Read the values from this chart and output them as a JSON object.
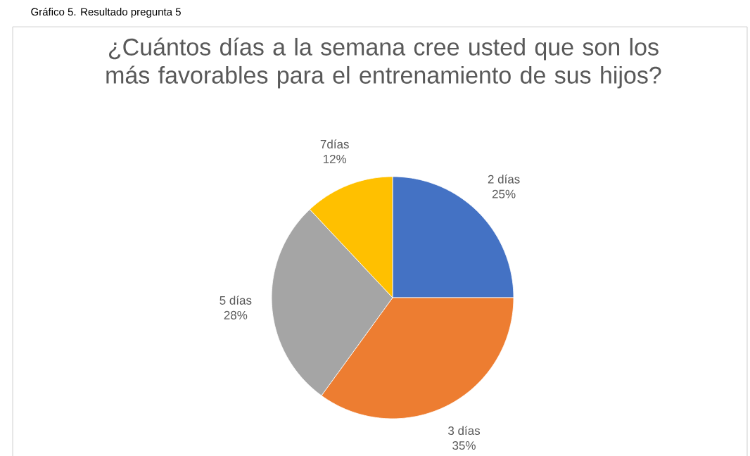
{
  "chart_data": {
    "type": "pie",
    "title": "¿Cuántos días a la semana cree usted que son los más favorables para el entrenamiento de sus hijos?",
    "categories": [
      "2 días",
      "3 días",
      "5 días",
      "7días"
    ],
    "values": [
      25,
      35,
      28,
      12
    ],
    "value_labels": [
      "25%",
      "35%",
      "28%",
      "12%"
    ],
    "colors": [
      "#4472c4",
      "#ed7d31",
      "#a5a5a5",
      "#ffc000"
    ],
    "annotations": [
      "Gráfico 5. Resultado pregunta 5"
    ]
  }
}
